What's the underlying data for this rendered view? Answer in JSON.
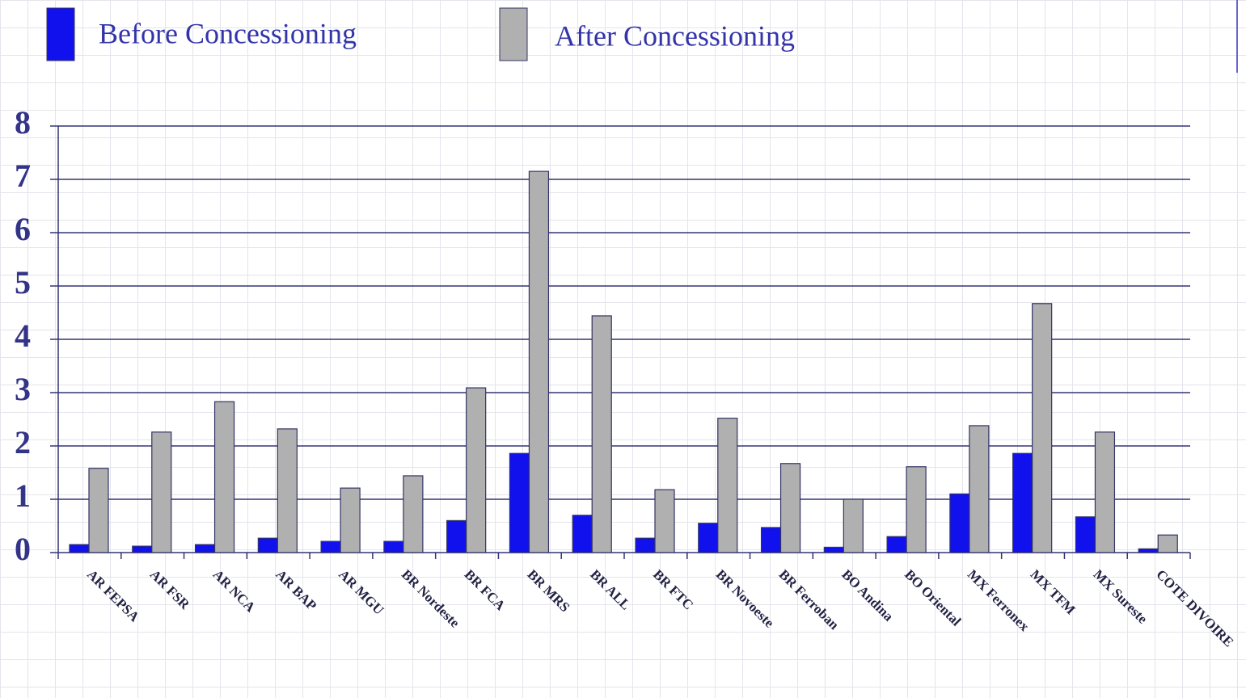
{
  "chart_data": {
    "type": "bar",
    "categories": [
      "AR FEPSA",
      "AR FSR",
      "AR NCA",
      "AR BAP",
      "AR MGU",
      "BR Nordeste",
      "BR FCA",
      "BR MRS",
      "BR ALL",
      "BR FTC",
      "BR Novoeste",
      "BR Ferroban",
      "BO Andina",
      "BO Oriental",
      "MX Ferronex",
      "MX TFM",
      "MX Sureste",
      "COTE DIVOIRE"
    ],
    "series": [
      {
        "name": "Before Concessioning",
        "color": "#1111ee",
        "values": [
          0.15,
          0.12,
          0.15,
          0.27,
          0.21,
          0.21,
          0.6,
          1.86,
          0.7,
          0.27,
          0.55,
          0.47,
          0.1,
          0.3,
          1.1,
          1.86,
          0.67,
          0.07
        ]
      },
      {
        "name": "After Concessioning",
        "color": "#b0b0b0",
        "values": [
          1.58,
          2.26,
          2.83,
          2.32,
          1.21,
          1.44,
          3.09,
          7.15,
          4.44,
          1.18,
          2.52,
          1.67,
          1.0,
          1.61,
          2.38,
          4.67,
          2.26,
          0.33
        ]
      }
    ],
    "ylim": [
      0,
      8
    ],
    "yticks": [
      0,
      1,
      2,
      3,
      4,
      5,
      6,
      7,
      8
    ],
    "grid": true
  }
}
